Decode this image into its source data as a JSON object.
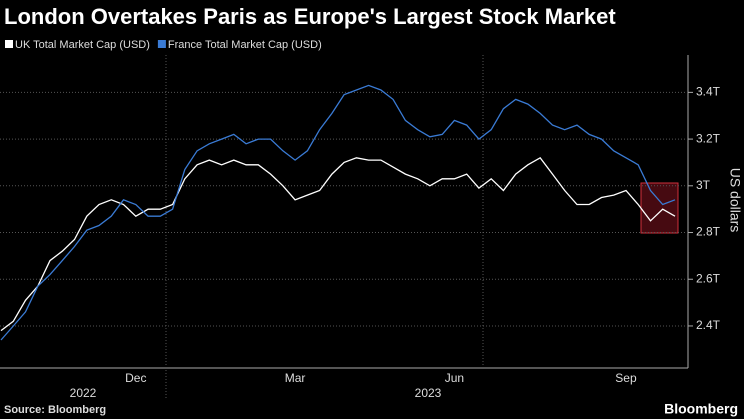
{
  "chart_data": {
    "type": "line",
    "title": "London Overtakes Paris as Europe's Largest Stock Market",
    "y_label": "US dollars",
    "source": "Source: Bloomberg",
    "logo": "Bloomberg",
    "year_labels": [
      "2022",
      "2023"
    ],
    "categories": [
      null,
      null,
      null,
      null,
      null,
      null,
      null,
      null,
      null,
      null,
      null,
      "Dec",
      null,
      null,
      null,
      null,
      null,
      null,
      null,
      null,
      null,
      null,
      null,
      null,
      "Mar",
      null,
      null,
      null,
      null,
      null,
      null,
      null,
      null,
      null,
      null,
      null,
      null,
      "Jun",
      null,
      null,
      null,
      null,
      null,
      null,
      null,
      null,
      null,
      null,
      null,
      null,
      null,
      "Sep",
      null,
      null,
      null,
      null
    ],
    "series": [
      {
        "name": "UK Total Market Cap (USD)",
        "color": "#ffffff",
        "values": [
          2.38,
          2.42,
          2.51,
          2.57,
          2.68,
          2.72,
          2.77,
          2.87,
          2.92,
          2.94,
          2.92,
          2.87,
          2.9,
          2.9,
          2.92,
          3.03,
          3.09,
          3.11,
          3.09,
          3.11,
          3.09,
          3.09,
          3.05,
          3.0,
          2.94,
          2.96,
          2.98,
          3.05,
          3.1,
          3.12,
          3.11,
          3.11,
          3.08,
          3.05,
          3.03,
          3.0,
          3.03,
          3.03,
          3.05,
          2.99,
          3.03,
          2.98,
          3.05,
          3.09,
          3.12,
          3.05,
          2.98,
          2.92,
          2.92,
          2.95,
          2.96,
          2.98,
          2.92,
          2.85,
          2.9,
          2.87
        ]
      },
      {
        "name": "France Total Market Cap (USD)",
        "color": "#3a7bd5",
        "values": [
          2.34,
          2.4,
          2.46,
          2.57,
          2.62,
          2.68,
          2.74,
          2.81,
          2.83,
          2.87,
          2.94,
          2.92,
          2.87,
          2.87,
          2.9,
          3.07,
          3.15,
          3.18,
          3.2,
          3.22,
          3.18,
          3.2,
          3.2,
          3.15,
          3.11,
          3.15,
          3.24,
          3.31,
          3.39,
          3.41,
          3.43,
          3.41,
          3.37,
          3.28,
          3.24,
          3.21,
          3.22,
          3.28,
          3.26,
          3.2,
          3.24,
          3.33,
          3.37,
          3.35,
          3.31,
          3.26,
          3.24,
          3.26,
          3.22,
          3.2,
          3.15,
          3.12,
          3.09,
          2.98,
          2.92,
          2.94
        ]
      }
    ],
    "ylim": [
      2.22,
      3.56
    ],
    "yticks": [
      {
        "value": 2.4,
        "label": "2.4T"
      },
      {
        "value": 2.6,
        "label": "2.6T"
      },
      {
        "value": 2.8,
        "label": "2.8T"
      },
      {
        "value": 3,
        "label": "3T"
      },
      {
        "value": 3.2,
        "label": "3.2T"
      },
      {
        "value": 3.4,
        "label": "3.4T"
      }
    ],
    "grid": true
  }
}
